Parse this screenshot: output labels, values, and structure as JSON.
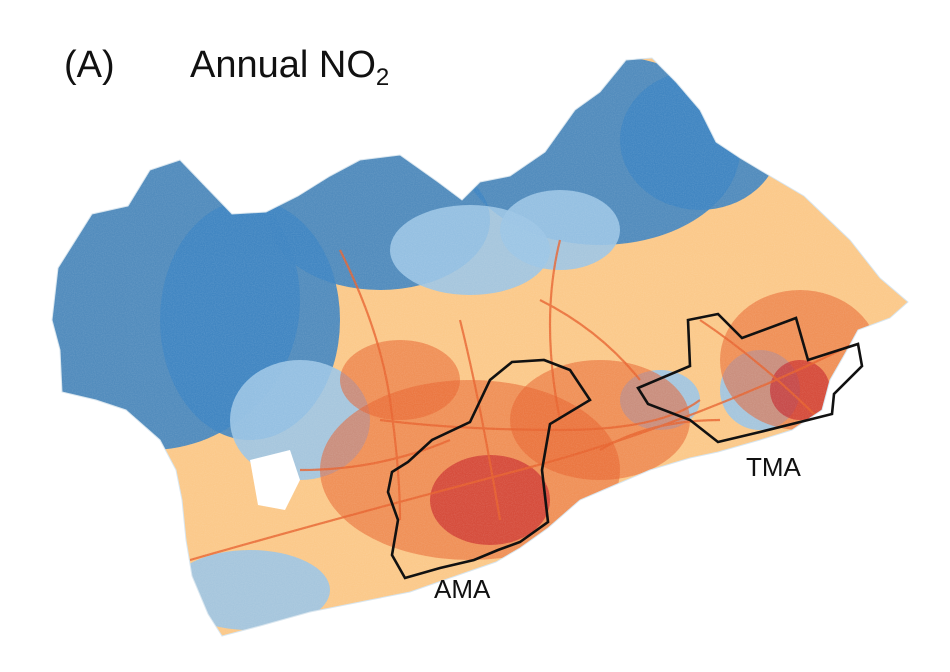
{
  "figure": {
    "panel_label": "(A)",
    "title_main": "Annual NO",
    "title_subscript": "2"
  },
  "regions": [
    {
      "id": "ama",
      "label": "AMA"
    },
    {
      "id": "tma",
      "label": "TMA"
    }
  ],
  "colors": {
    "low": "#3f85c2",
    "mid_low": "#9cc5e6",
    "neutral": "#f7ead0",
    "mid_high": "#fbc98a",
    "high": "#e8632f",
    "very_high": "#c4202a",
    "boundary": "#111111",
    "background": "#ffffff"
  }
}
